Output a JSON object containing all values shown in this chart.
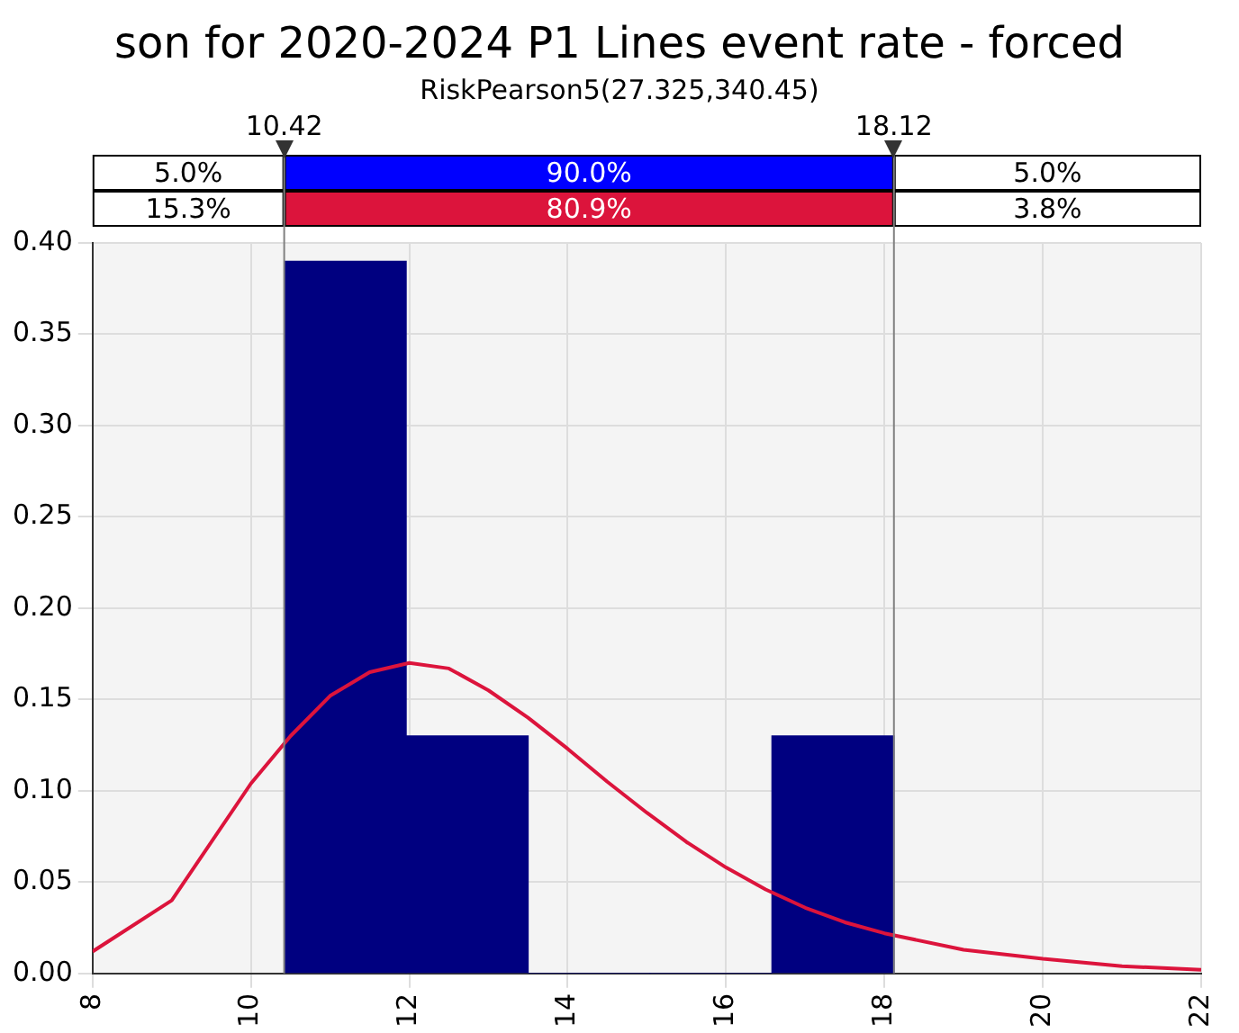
{
  "chart_data": {
    "type": "histogram",
    "title": "son for 2020-2024 P1 Lines event rate - forced",
    "subtitle": "RiskPearson5(27.325,340.45)",
    "bins": [
      10.42,
      11.96,
      13.5,
      15.04,
      16.58,
      18.12
    ],
    "values": [
      0.39,
      0.13,
      0,
      0,
      0.13
    ],
    "color": "#000080",
    "series": [
      {
        "type": "line",
        "color": "#dc143c",
        "x": [
          8,
          9,
          10,
          10.5,
          11,
          11.5,
          12,
          12.5,
          13,
          13.5,
          14,
          14.5,
          15,
          15.5,
          16,
          16.5,
          17,
          17.5,
          18,
          19,
          20,
          21,
          22
        ],
        "values": [
          0.012,
          0.04,
          0.104,
          0.13,
          0.152,
          0.165,
          0.17,
          0.167,
          0.155,
          0.14,
          0.123,
          0.105,
          0.088,
          0.072,
          0.058,
          0.046,
          0.036,
          0.028,
          0.022,
          0.013,
          0.008,
          0.004,
          0.002
        ]
      }
    ],
    "xlim": [
      8,
      22
    ],
    "xticks": [
      8,
      10,
      12,
      14,
      16,
      18,
      20,
      22
    ],
    "ylim": [
      0,
      0.4
    ],
    "yticks": [
      {
        "value": 0,
        "label": "0.00"
      },
      {
        "value": 0.05,
        "label": "0.05"
      },
      {
        "value": 0.1,
        "label": "0.10"
      },
      {
        "value": 0.15,
        "label": "0.15"
      },
      {
        "value": 0.2,
        "label": "0.20"
      },
      {
        "value": 0.25,
        "label": "0.25"
      },
      {
        "value": 0.3,
        "label": "0.30"
      },
      {
        "value": 0.35,
        "label": "0.35"
      },
      {
        "value": 0.4,
        "label": "0.40"
      }
    ],
    "ref_lines": [
      {
        "axis": "x",
        "value": 10.42,
        "label": "10.42",
        "color": "#808080"
      },
      {
        "axis": "x",
        "value": 18.12,
        "label": "18.12",
        "color": "#808080"
      }
    ],
    "annotations": [
      "5.0%",
      "90.0%",
      "5.0%",
      "15.3%",
      "80.9%",
      "3.8%"
    ],
    "grid": true,
    "legend": false
  }
}
